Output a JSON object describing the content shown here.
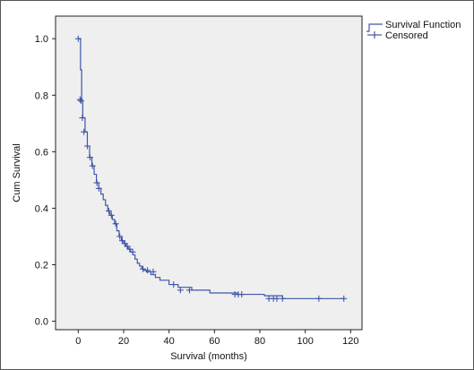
{
  "chart_data": {
    "type": "line",
    "xlabel": "Survival (months)",
    "ylabel": "Cum Survival",
    "xlim": [
      -10,
      125
    ],
    "ylim": [
      -0.03,
      1.08
    ],
    "xticks": [
      0,
      20,
      40,
      60,
      80,
      100,
      120
    ],
    "yticks": [
      0.0,
      0.2,
      0.4,
      0.6,
      0.8,
      1.0
    ],
    "ytick_labels": [
      "0.0",
      "0.2",
      "0.4",
      "0.6",
      "0.8",
      "1.0"
    ],
    "grid": false,
    "legend_position": "top-right outside",
    "background_color": "#efefef",
    "line_color": "#3f57a8",
    "series": [
      {
        "name": "Survival Function",
        "kind": "step",
        "x": [
          0,
          1,
          1.5,
          2,
          3,
          4,
          5,
          6,
          7,
          8,
          9,
          10,
          11,
          12,
          13,
          14,
          15,
          16,
          17,
          18,
          19,
          20,
          21,
          22,
          23,
          24,
          25,
          26,
          27,
          28,
          29,
          30,
          32,
          34,
          36,
          40,
          44,
          50,
          58,
          70,
          82,
          90,
          117
        ],
        "y": [
          1.0,
          0.89,
          0.78,
          0.72,
          0.67,
          0.62,
          0.58,
          0.55,
          0.52,
          0.49,
          0.47,
          0.45,
          0.43,
          0.41,
          0.39,
          0.375,
          0.36,
          0.345,
          0.32,
          0.3,
          0.285,
          0.275,
          0.265,
          0.255,
          0.245,
          0.235,
          0.22,
          0.205,
          0.195,
          0.185,
          0.18,
          0.175,
          0.165,
          0.155,
          0.145,
          0.13,
          0.12,
          0.11,
          0.1,
          0.095,
          0.09,
          0.08,
          0.08
        ]
      },
      {
        "name": "Censored",
        "kind": "marker",
        "x": [
          0,
          0.8,
          1.2,
          1.8,
          2.5,
          4.0,
          5.2,
          6.3,
          8.2,
          9.1,
          13.5,
          14.6,
          16.5,
          18.3,
          19.4,
          20.5,
          21.6,
          22.7,
          24.0,
          28.5,
          30.5,
          33.0,
          42.0,
          45.0,
          49.0,
          69.0,
          70.5,
          72.0,
          84.0,
          86.0,
          87.5,
          90.0,
          106.0,
          117.0
        ],
        "y": [
          1.0,
          0.785,
          0.78,
          0.72,
          0.67,
          0.62,
          0.58,
          0.55,
          0.49,
          0.47,
          0.39,
          0.375,
          0.345,
          0.3,
          0.285,
          0.275,
          0.265,
          0.255,
          0.245,
          0.185,
          0.18,
          0.175,
          0.13,
          0.11,
          0.11,
          0.095,
          0.095,
          0.095,
          0.08,
          0.08,
          0.08,
          0.08,
          0.08,
          0.08
        ]
      }
    ]
  }
}
